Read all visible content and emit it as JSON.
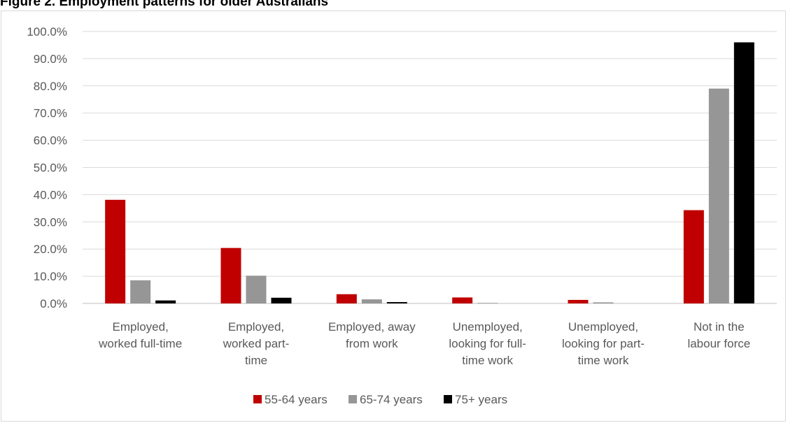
{
  "figure": {
    "title": "Figure 2. Employment patterns for older Australians"
  },
  "chart_data": {
    "type": "bar",
    "categories": [
      [
        "Employed,",
        "worked full-time"
      ],
      [
        "Employed,",
        "worked part-",
        "time"
      ],
      [
        "Employed, away",
        "from work"
      ],
      [
        "Unemployed,",
        "looking for full-",
        "time work"
      ],
      [
        "Unemployed,",
        "looking for part-",
        "time work"
      ],
      [
        "Not in the",
        "labour force"
      ]
    ],
    "series": [
      {
        "name": "55-64 years",
        "color": "#c00000",
        "values": [
          38.1,
          20.4,
          3.4,
          2.2,
          1.3,
          34.3
        ]
      },
      {
        "name": "65-74 years",
        "color": "#969696",
        "values": [
          8.5,
          10.2,
          1.5,
          0.2,
          0.4,
          79.0
        ]
      },
      {
        "name": "75+ years",
        "color": "#000000",
        "values": [
          1.1,
          2.1,
          0.5,
          0.0,
          0.0,
          96.0
        ]
      }
    ],
    "ylim": [
      0,
      100
    ],
    "yticks": [
      "0.0%",
      "10.0%",
      "20.0%",
      "30.0%",
      "40.0%",
      "50.0%",
      "60.0%",
      "70.0%",
      "80.0%",
      "90.0%",
      "100.0%"
    ],
    "grid": true,
    "legend_position": "bottom"
  }
}
